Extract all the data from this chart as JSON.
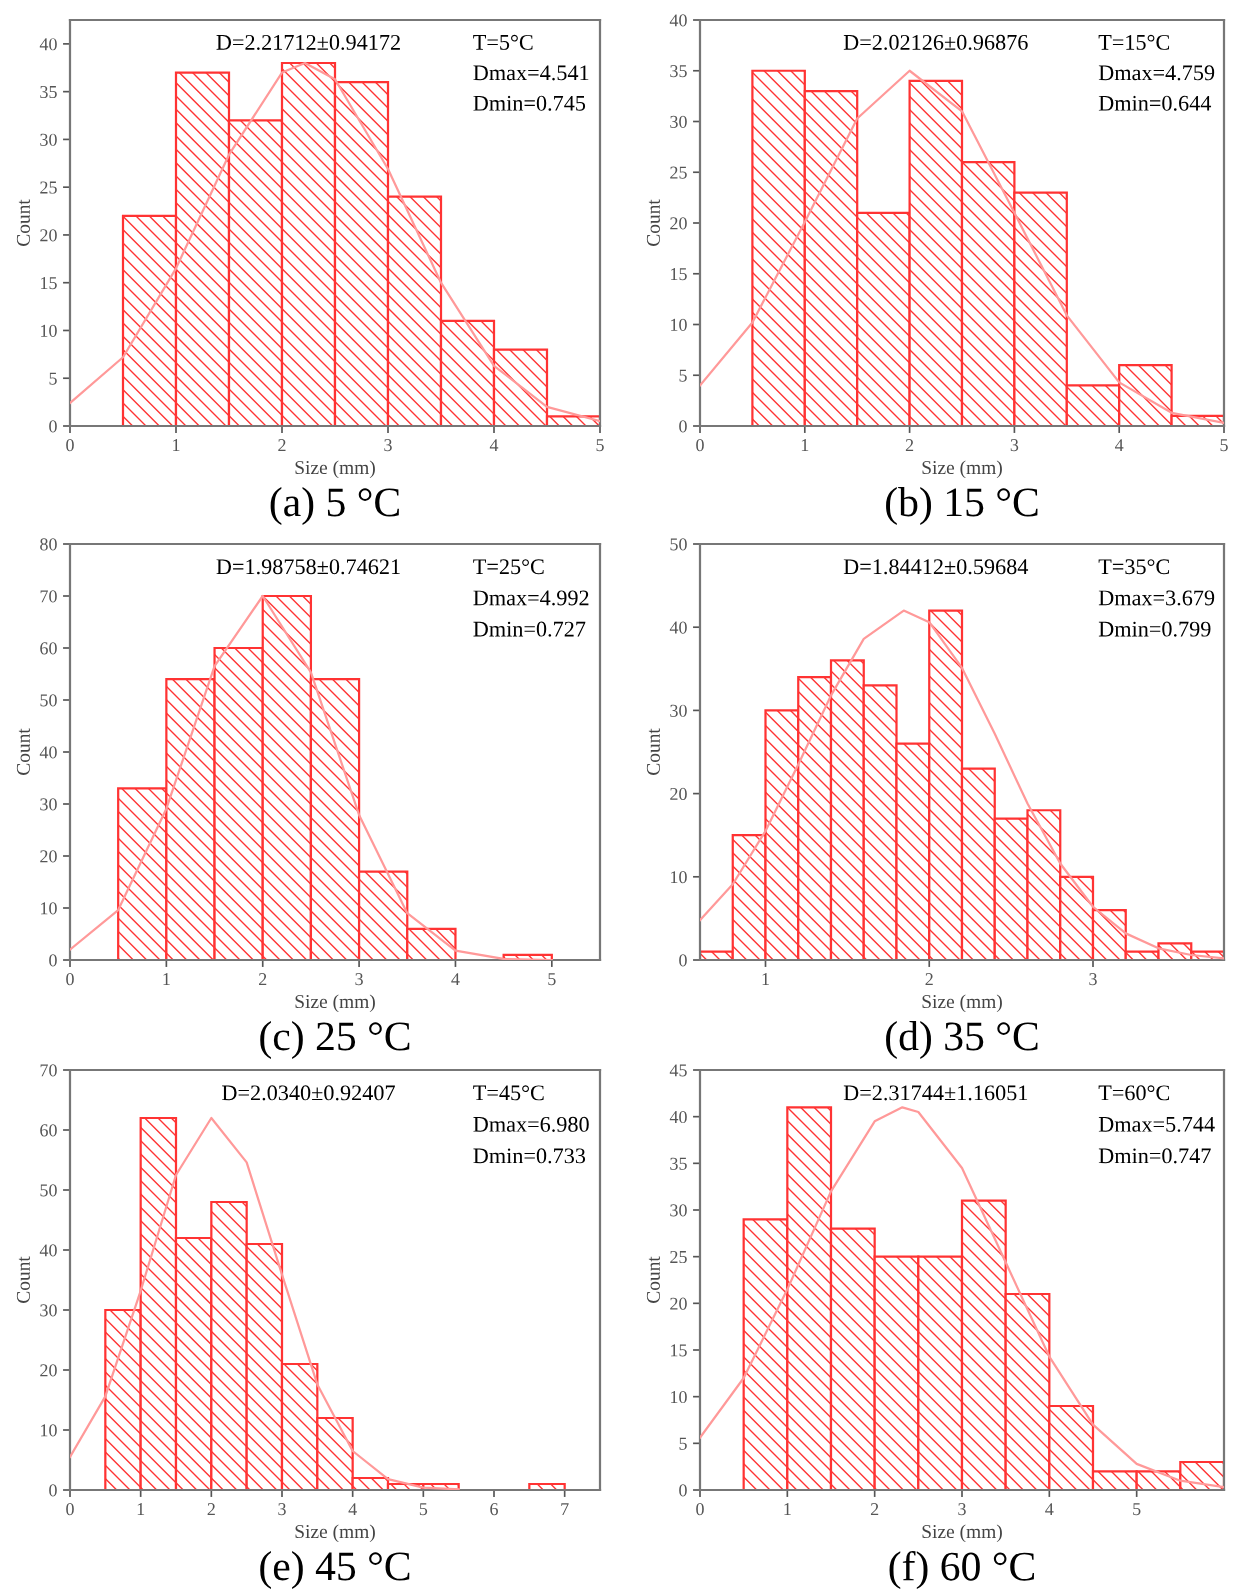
{
  "chart_data": [
    {
      "type": "histogram",
      "title": "(a) 5 °C",
      "xlabel": "Size (mm)",
      "ylabel": "Count",
      "annotations": [
        "D=2.21712±0.94172",
        "T=5°C",
        "Dmax=4.541",
        "Dmin=0.745"
      ],
      "xlim": [
        0,
        5
      ],
      "ylim": [
        0,
        42.5
      ],
      "xticks": [
        0,
        1,
        2,
        3,
        4,
        5
      ],
      "yticks": [
        0,
        5,
        10,
        15,
        20,
        25,
        30,
        35,
        40
      ],
      "grid": false,
      "series": [
        {
          "type": "histogram",
          "color": "#ff3333",
          "bins": [
            0.5,
            1,
            1.5,
            2,
            2.5,
            3,
            3.5,
            4,
            4.5,
            5
          ],
          "values": [
            22,
            37,
            32,
            38,
            36,
            24,
            11,
            8,
            1
          ]
        },
        {
          "type": "line",
          "color": "#ff9999",
          "x": [
            0,
            0.5,
            1,
            1.5,
            2,
            2.217,
            2.5,
            3,
            3.5,
            4,
            4.5,
            5
          ],
          "values": [
            2.4,
            7.2,
            16.5,
            28.4,
            37,
            38,
            36.3,
            26.9,
            15,
            6.3,
            2,
            0.5
          ]
        }
      ]
    },
    {
      "type": "histogram",
      "title": "(b) 15 °C",
      "xlabel": "Size (mm)",
      "ylabel": "Count",
      "annotations": [
        "D=2.02126±0.96876",
        "T=15°C",
        "Dmax=4.759",
        "Dmin=0.644"
      ],
      "xlim": [
        0,
        5
      ],
      "ylim": [
        0,
        40
      ],
      "xticks": [
        0,
        1,
        2,
        3,
        4,
        5
      ],
      "yticks": [
        0,
        5,
        10,
        15,
        20,
        25,
        30,
        35,
        40
      ],
      "grid": false,
      "series": [
        {
          "type": "histogram",
          "color": "#ff3333",
          "bins": [
            0.5,
            1,
            1.5,
            2,
            2.5,
            3,
            3.5,
            4,
            4.5,
            5
          ],
          "values": [
            35,
            33,
            21,
            34,
            26,
            23,
            4,
            6,
            1
          ]
        },
        {
          "type": "line",
          "color": "#ff9999",
          "x": [
            0,
            0.5,
            1,
            1.5,
            2,
            2.5,
            3,
            3.5,
            4,
            4.5,
            5
          ],
          "values": [
            4,
            10.2,
            20.1,
            30.3,
            35,
            31,
            21,
            10.9,
            4.3,
            1.3,
            0.3
          ]
        }
      ]
    },
    {
      "type": "histogram",
      "title": "(c) 25 °C",
      "xlabel": "Size (mm)",
      "ylabel": "Count",
      "annotations": [
        "D=1.98758±0.74621",
        "T=25°C",
        "Dmax=4.992",
        "Dmin=0.727"
      ],
      "xlim": [
        0,
        5.5
      ],
      "ylim": [
        0,
        80
      ],
      "xticks": [
        0,
        1,
        2,
        3,
        4,
        5
      ],
      "yticks": [
        0,
        10,
        20,
        30,
        40,
        50,
        60,
        70,
        80
      ],
      "grid": false,
      "series": [
        {
          "type": "histogram",
          "color": "#ff3333",
          "bins": [
            0.5,
            1,
            1.5,
            2,
            2.5,
            3,
            3.5,
            4,
            4.5,
            5
          ],
          "values": [
            33,
            54,
            60,
            70,
            54,
            17,
            6,
            0,
            1
          ]
        },
        {
          "type": "line",
          "color": "#ff9999",
          "x": [
            0,
            0.5,
            1,
            1.5,
            2,
            2.5,
            3,
            3.5,
            4,
            4.5,
            5
          ],
          "values": [
            2,
            9.6,
            29.1,
            56.5,
            70,
            55.3,
            27.9,
            9,
            1.8,
            0.2,
            0
          ]
        }
      ]
    },
    {
      "type": "histogram",
      "title": "(d) 35 °C",
      "xlabel": "Size (mm)",
      "ylabel": "Count",
      "annotations": [
        "D=1.84412±0.59684",
        "T=35°C",
        "Dmax=3.679",
        "Dmin=0.799"
      ],
      "xlim": [
        0.6,
        3.8
      ],
      "ylim": [
        0,
        50
      ],
      "xticks": [
        1,
        2,
        3
      ],
      "yticks": [
        0,
        10,
        20,
        30,
        40,
        50
      ],
      "grid": false,
      "series": [
        {
          "type": "histogram",
          "color": "#ff3333",
          "bins": [
            0.6,
            0.8,
            1.0,
            1.2,
            1.4,
            1.6,
            1.8,
            2.0,
            2.2,
            2.4,
            2.6,
            2.8,
            3.0,
            3.2,
            3.4,
            3.6,
            3.8
          ],
          "values": [
            1,
            15,
            30,
            34,
            36,
            33,
            26,
            42,
            23,
            17,
            18,
            10,
            6,
            1,
            2,
            1
          ]
        },
        {
          "type": "line",
          "color": "#ff9999",
          "x": [
            0.6,
            0.8,
            1.0,
            1.2,
            1.4,
            1.6,
            1.844,
            2.0,
            2.2,
            2.4,
            2.6,
            2.8,
            3.0,
            3.2,
            3.4,
            3.6,
            3.8
          ],
          "values": [
            4.8,
            9.1,
            15.5,
            23.5,
            31.8,
            38.6,
            42,
            40.6,
            35.1,
            27.2,
            18.8,
            11.6,
            6.4,
            3.2,
            1.4,
            0.6,
            0.2
          ]
        }
      ]
    },
    {
      "type": "histogram",
      "title": "(e) 45 °C",
      "xlabel": "Size (mm)",
      "ylabel": "Count",
      "annotations": [
        "D=2.0340±0.92407",
        "T=45°C",
        "Dmax=6.980",
        "Dmin=0.733"
      ],
      "xlim": [
        0,
        7.5
      ],
      "ylim": [
        0,
        70
      ],
      "xticks": [
        0,
        1,
        2,
        3,
        4,
        5,
        6,
        7
      ],
      "yticks": [
        0,
        10,
        20,
        30,
        40,
        50,
        60,
        70
      ],
      "grid": false,
      "series": [
        {
          "type": "histogram",
          "color": "#ff3333",
          "bins": [
            0.5,
            1,
            1.5,
            2,
            2.5,
            3,
            3.5,
            4,
            4.5,
            5,
            5.5,
            6,
            6.5,
            7
          ],
          "values": [
            30,
            62,
            42,
            48,
            41,
            21,
            12,
            2,
            1,
            1,
            0,
            0,
            1
          ]
        },
        {
          "type": "line",
          "color": "#ff9999",
          "x": [
            0,
            0.5,
            1,
            1.5,
            2,
            2.5,
            3,
            3.5,
            4,
            4.5,
            5,
            5.5
          ],
          "values": [
            5.5,
            15.6,
            33.2,
            52.5,
            62,
            54.6,
            35.9,
            17.6,
            6.5,
            1.8,
            0.4,
            0.1
          ]
        }
      ]
    },
    {
      "type": "histogram",
      "title": "(f) 60 °C",
      "xlabel": "Size (mm)",
      "ylabel": "Count",
      "annotations": [
        "D=2.31744±1.16051",
        "T=60°C",
        "Dmax=5.744",
        "Dmin=0.747"
      ],
      "xlim": [
        0,
        6
      ],
      "ylim": [
        0,
        45
      ],
      "xticks": [
        0,
        1,
        2,
        3,
        4,
        5
      ],
      "yticks": [
        0,
        5,
        10,
        15,
        20,
        25,
        30,
        35,
        40,
        45
      ],
      "grid": false,
      "series": [
        {
          "type": "histogram",
          "color": "#ff3333",
          "bins": [
            0.5,
            1,
            1.5,
            2,
            2.5,
            3,
            3.5,
            4,
            4.5,
            5,
            5.5,
            6
          ],
          "values": [
            29,
            41,
            28,
            25,
            25,
            31,
            21,
            9,
            2,
            2,
            3
          ]
        },
        {
          "type": "line",
          "color": "#ff9999",
          "x": [
            0,
            0.5,
            1,
            1.5,
            2,
            2.317,
            2.5,
            3,
            3.5,
            4,
            4.5,
            5,
            5.5,
            6
          ],
          "values": [
            5.6,
            12,
            21.5,
            32,
            39.5,
            41,
            40.5,
            34.5,
            24.4,
            14.3,
            7,
            2.8,
            1,
            0.3
          ]
        }
      ]
    }
  ]
}
